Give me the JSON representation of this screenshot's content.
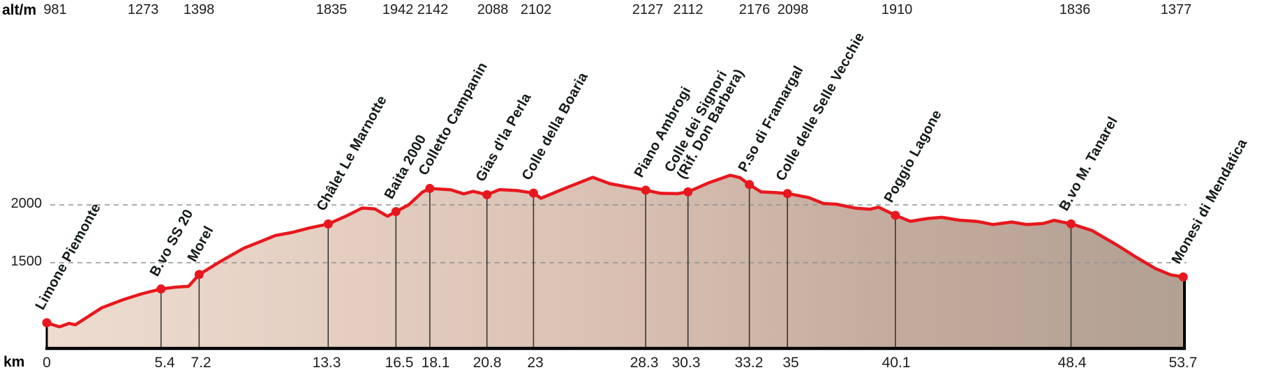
{
  "chart_data": {
    "type": "area",
    "title": "",
    "x_axis": {
      "unit_label": "km",
      "range": [
        0,
        53.7
      ]
    },
    "y_axis": {
      "unit_label": "alt/m",
      "gridlines": [
        2000,
        1500
      ],
      "grid_style": "dashed"
    },
    "colors": {
      "profile_line": "#e8171d",
      "waypoint_dot": "#e8171d",
      "fill_gradient": [
        "#eedcd1",
        "#e4cfc2",
        "#d9c0b2",
        "#c2ab9d",
        "#b2a093"
      ],
      "grid": "#909090",
      "axis": "#000000",
      "value_text": "#1d1d1b",
      "label_text": "#121a15"
    },
    "waypoints": [
      {
        "label": "Limone Piemonte",
        "km": 0,
        "alt": 981,
        "alt_dx": 12,
        "km_dx": 0
      },
      {
        "label": "B.vo SS 20",
        "km": 5.4,
        "alt": 1273,
        "alt_dx": -26,
        "km_dx": 5
      },
      {
        "label": "Morel",
        "km": 7.2,
        "alt": 1398,
        "alt_dx": 0,
        "km_dx": 3
      },
      {
        "label": "Châlet Le Marnotte",
        "km": 13.3,
        "alt": 1835,
        "alt_dx": 5,
        "km_dx": -2
      },
      {
        "label": "Baita 2000",
        "km": 16.5,
        "alt": 1942,
        "alt_dx": 3,
        "km_dx": 5
      },
      {
        "label": "Colletto Campanin",
        "km": 18.1,
        "alt": 2142,
        "alt_dx": 4,
        "km_dx": 8
      },
      {
        "label": "Gias d'la Perla",
        "km": 20.8,
        "alt": 2088,
        "alt_dx": 8,
        "km_dx": 0
      },
      {
        "label": "Colle della Boaria",
        "km": 23,
        "alt": 2102,
        "alt_dx": 4,
        "km_dx": 3
      },
      {
        "label": "Piano Ambrogi",
        "km": 28.3,
        "alt": 2127,
        "alt_dx": 3,
        "km_dx": -2
      },
      {
        "label": "Colle dei Signori",
        "label2": "(Rif. Don Barbera)",
        "km": 30.3,
        "alt": 2112,
        "alt_dx": 0,
        "km_dx": -3
      },
      {
        "label": "P.so di Framargal",
        "km": 33.2,
        "alt": 2176,
        "alt_dx": 7,
        "km_dx": -1
      },
      {
        "label": "Colle delle Selle Vecchie",
        "km": 35,
        "alt": 2098,
        "alt_dx": 8,
        "km_dx": 5
      },
      {
        "label": "Poggio Lagone",
        "km": 40.1,
        "alt": 1910,
        "alt_dx": 2,
        "km_dx": 1
      },
      {
        "label": "B.vo M. Tanarel",
        "km": 48.4,
        "alt": 1836,
        "alt_dx": 6,
        "km_dx": 2
      },
      {
        "label": "Monesi di Mendatica",
        "km": 53.7,
        "alt": 1377,
        "alt_dx": -10,
        "km_dx": 0
      }
    ],
    "profile": [
      [
        0,
        981
      ],
      [
        0.6,
        946
      ],
      [
        1.05,
        975
      ],
      [
        1.35,
        963
      ],
      [
        2.6,
        1110
      ],
      [
        3.6,
        1180
      ],
      [
        4.5,
        1232
      ],
      [
        5.4,
        1273
      ],
      [
        6.1,
        1289
      ],
      [
        6.7,
        1296
      ],
      [
        7.2,
        1398
      ],
      [
        8.2,
        1510
      ],
      [
        9.3,
        1625
      ],
      [
        10.8,
        1735
      ],
      [
        11.6,
        1762
      ],
      [
        12.4,
        1800
      ],
      [
        13.3,
        1835
      ],
      [
        14.2,
        1908
      ],
      [
        14.9,
        1973
      ],
      [
        15.5,
        1965
      ],
      [
        16.1,
        1902
      ],
      [
        16.5,
        1942
      ],
      [
        17.1,
        2000
      ],
      [
        17.75,
        2110
      ],
      [
        18.1,
        2142
      ],
      [
        19.1,
        2130
      ],
      [
        19.7,
        2095
      ],
      [
        20.15,
        2117
      ],
      [
        20.8,
        2088
      ],
      [
        21.4,
        2132
      ],
      [
        22.2,
        2124
      ],
      [
        23,
        2102
      ],
      [
        23.35,
        2057
      ],
      [
        24.6,
        2152
      ],
      [
        25.8,
        2238
      ],
      [
        26.6,
        2184
      ],
      [
        27.2,
        2163
      ],
      [
        28.3,
        2127
      ],
      [
        29,
        2100
      ],
      [
        29.8,
        2097
      ],
      [
        30.3,
        2112
      ],
      [
        31.3,
        2192
      ],
      [
        32.3,
        2256
      ],
      [
        32.75,
        2236
      ],
      [
        33.2,
        2176
      ],
      [
        33.75,
        2112
      ],
      [
        34.4,
        2107
      ],
      [
        35,
        2098
      ],
      [
        36,
        2064
      ],
      [
        36.7,
        2012
      ],
      [
        37.3,
        2006
      ],
      [
        38.2,
        1972
      ],
      [
        38.9,
        1962
      ],
      [
        39.3,
        1980
      ],
      [
        40.1,
        1910
      ],
      [
        40.8,
        1858
      ],
      [
        41.6,
        1882
      ],
      [
        42.3,
        1892
      ],
      [
        43.1,
        1868
      ],
      [
        44,
        1856
      ],
      [
        44.7,
        1830
      ],
      [
        45.6,
        1852
      ],
      [
        46.3,
        1830
      ],
      [
        47.1,
        1840
      ],
      [
        47.6,
        1866
      ],
      [
        48.4,
        1836
      ],
      [
        49.4,
        1778
      ],
      [
        50.5,
        1660
      ],
      [
        51.5,
        1545
      ],
      [
        52.4,
        1448
      ],
      [
        53.1,
        1396
      ],
      [
        53.7,
        1377
      ]
    ]
  }
}
